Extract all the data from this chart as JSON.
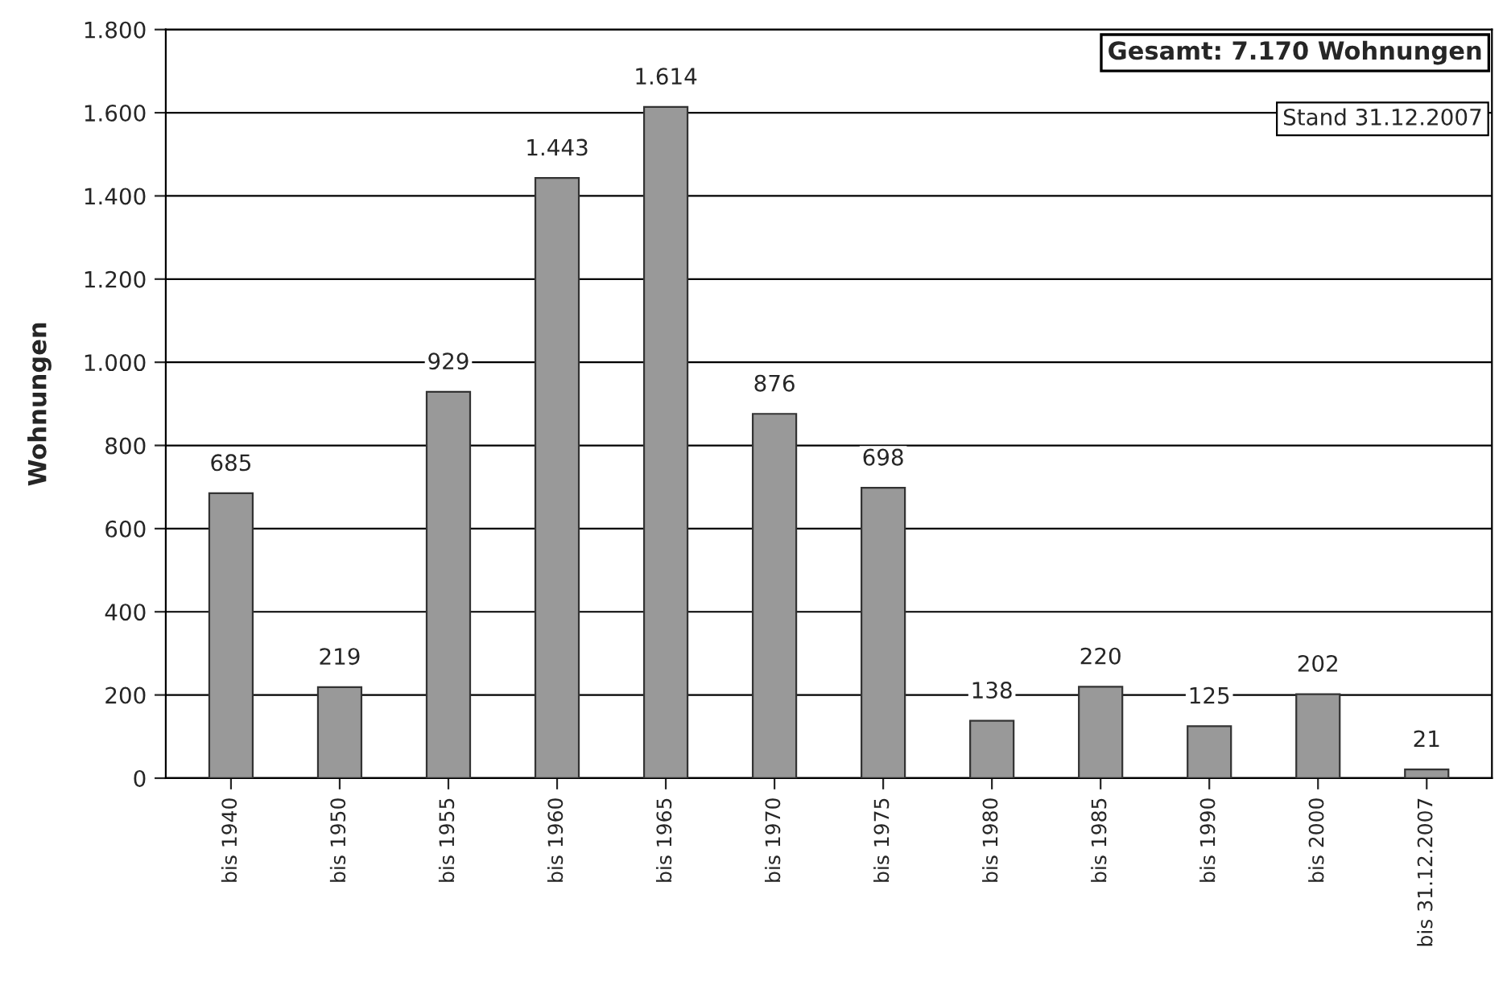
{
  "chart_data": {
    "type": "bar",
    "ylabel": "Wohnungen",
    "categories": [
      "bis 1940",
      "bis 1950",
      "bis 1955",
      "bis 1960",
      "bis 1965",
      "bis 1970",
      "bis 1975",
      "bis 1980",
      "bis 1985",
      "bis 1990",
      "bis 2000",
      "bis 31.12.2007"
    ],
    "values": [
      685,
      219,
      929,
      1443,
      1614,
      876,
      698,
      138,
      220,
      125,
      202,
      21
    ],
    "value_labels": [
      "685",
      "219",
      "929",
      "1.443",
      "1.614",
      "876",
      "698",
      "138",
      "220",
      "125",
      "202",
      "21"
    ],
    "color": "#999999",
    "ylim": [
      0,
      1800
    ],
    "yticks": [
      0,
      200,
      400,
      600,
      800,
      {
        "value": 1000,
        "label": "1.000"
      },
      {
        "value": 1200,
        "label": "1.200"
      },
      {
        "value": 1400,
        "label": "1.400"
      },
      {
        "value": 1600,
        "label": "1.600"
      },
      {
        "value": 1800,
        "label": "1.800"
      }
    ],
    "grid": "y",
    "annotations": [
      "Gesamt: 7.170 Wohnungen",
      "Stand 31.12.2007"
    ]
  }
}
